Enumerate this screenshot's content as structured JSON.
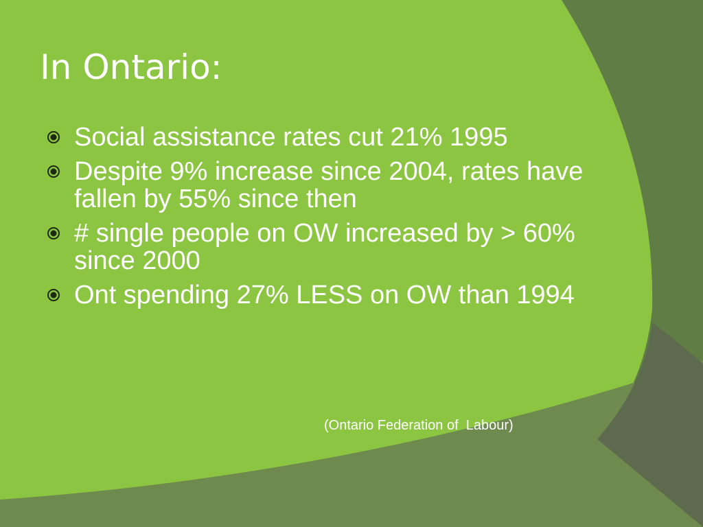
{
  "slide": {
    "title": "In Ontario:",
    "bullet_icon": "circled-dot-icon",
    "bullets": [
      {
        "text": "Social assistance rates cut 21% 1995"
      },
      {
        "text": "Despite 9% increase since 2004, rates have fallen by 55% since then"
      },
      {
        "text": "# single people on OW increased by > 60% since 2000"
      },
      {
        "text": "Ont spending 27% LESS on OW than 1994"
      }
    ],
    "citation": "(Ontario Federation of  Labour)"
  },
  "colors": {
    "background_light": "#8bc541",
    "background_dark": "#5f6d4c",
    "background_mid": "#6f8a4b",
    "text": "#ffffff",
    "bullet_icon": "#1b2a10"
  }
}
